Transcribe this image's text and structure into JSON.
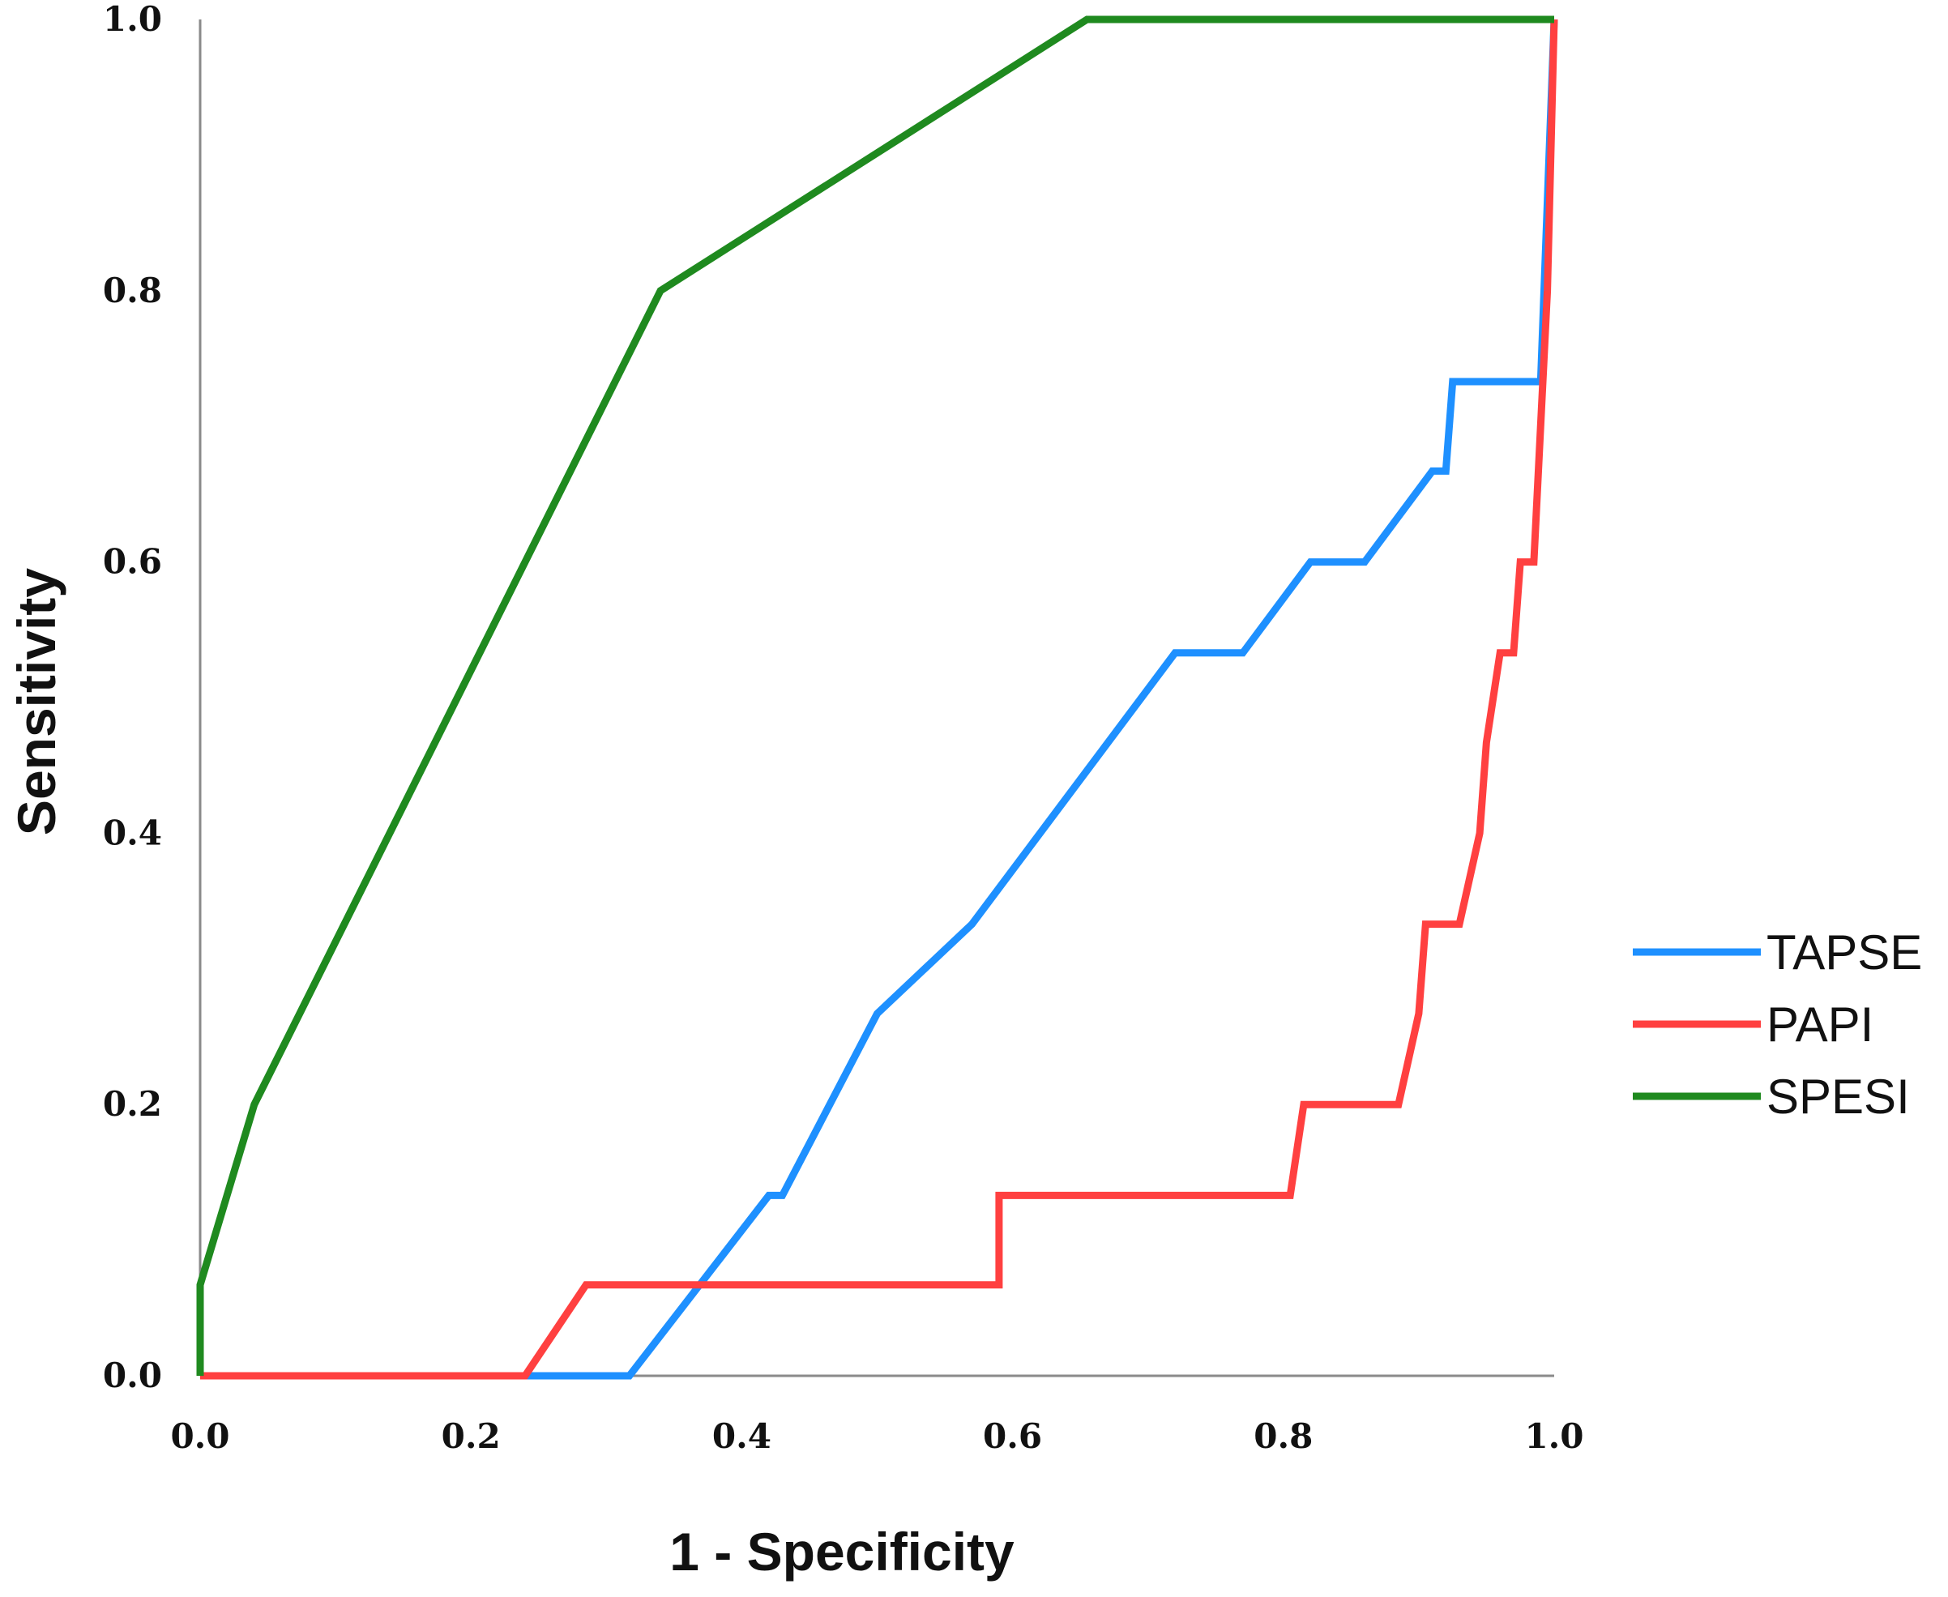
{
  "chart_data": {
    "type": "line",
    "title": "",
    "xlabel": "1 - Specificity",
    "ylabel": "Sensitivity",
    "xlim": [
      0,
      1
    ],
    "ylim": [
      0,
      1
    ],
    "xticks": [
      "0.0",
      "0.2",
      "0.4",
      "0.6",
      "0.8",
      "1.0"
    ],
    "yticks": [
      "0.0",
      "0.2",
      "0.4",
      "0.6",
      "0.8",
      "1.0"
    ],
    "grid": false,
    "legend_position": "right",
    "series": [
      {
        "name": "TAPSE",
        "color": "#1e90ff",
        "points": [
          [
            0.24,
            0.0
          ],
          [
            0.317,
            0.0
          ],
          [
            0.42,
            0.133
          ],
          [
            0.43,
            0.133
          ],
          [
            0.5,
            0.267
          ],
          [
            0.57,
            0.333
          ],
          [
            0.72,
            0.533
          ],
          [
            0.77,
            0.533
          ],
          [
            0.82,
            0.6
          ],
          [
            0.86,
            0.6
          ],
          [
            0.91,
            0.667
          ],
          [
            0.92,
            0.667
          ],
          [
            0.925,
            0.733
          ],
          [
            0.99,
            0.733
          ],
          [
            1.0,
            1.0
          ]
        ]
      },
      {
        "name": "PAPI",
        "color": "#ff4040",
        "points": [
          [
            0.0,
            0.0
          ],
          [
            0.24,
            0.0
          ],
          [
            0.285,
            0.067
          ],
          [
            0.59,
            0.067
          ],
          [
            0.59,
            0.133
          ],
          [
            0.805,
            0.133
          ],
          [
            0.815,
            0.2
          ],
          [
            0.885,
            0.2
          ],
          [
            0.9,
            0.267
          ],
          [
            0.905,
            0.333
          ],
          [
            0.93,
            0.333
          ],
          [
            0.945,
            0.4
          ],
          [
            0.95,
            0.467
          ],
          [
            0.96,
            0.533
          ],
          [
            0.97,
            0.533
          ],
          [
            0.975,
            0.6
          ],
          [
            0.985,
            0.6
          ],
          [
            0.995,
            0.8
          ],
          [
            1.0,
            1.0
          ]
        ]
      },
      {
        "name": "SPESI",
        "color": "#1f8a1f",
        "points": [
          [
            0.0,
            0.0
          ],
          [
            0.0,
            0.067
          ],
          [
            0.04,
            0.2
          ],
          [
            0.34,
            0.8
          ],
          [
            0.655,
            1.0
          ],
          [
            1.0,
            1.0
          ]
        ]
      }
    ]
  }
}
